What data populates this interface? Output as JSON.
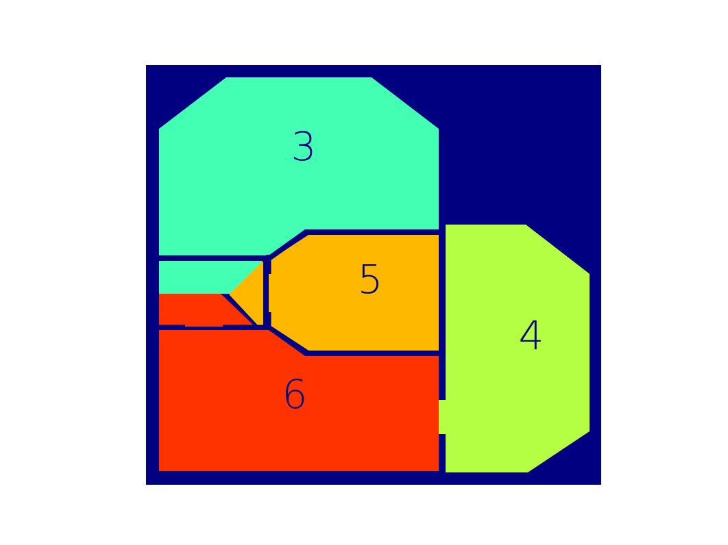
{
  "colors": {
    "background": "#ffffff",
    "walls": "#000080",
    "room_3": "#43ffb4",
    "room_4": "#b4ff43",
    "room_5": "#ffb800",
    "room_6": "#ff3300",
    "label": "#000080"
  },
  "rooms": [
    {
      "id": "3",
      "label": "3",
      "color_key": "room_3"
    },
    {
      "id": "4",
      "label": "4",
      "color_key": "room_4"
    },
    {
      "id": "5",
      "label": "5",
      "color_key": "room_5"
    },
    {
      "id": "6",
      "label": "6",
      "color_key": "room_6"
    }
  ]
}
